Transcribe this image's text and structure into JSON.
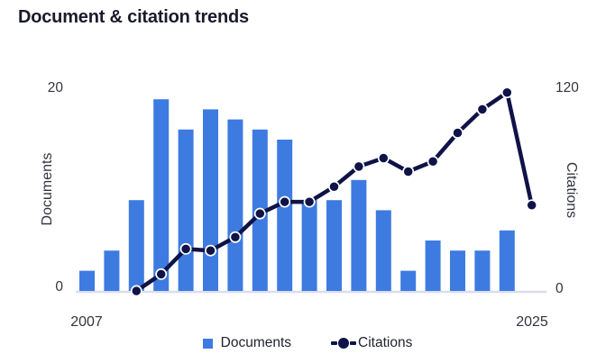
{
  "header": {
    "title": "Document & citation trends"
  },
  "chart": {
    "left_axis": {
      "label": "Documents",
      "max_label": "20",
      "min_label": "0"
    },
    "right_axis": {
      "label": "Citations",
      "max_label": "120",
      "min_label": "0"
    },
    "x_axis": {
      "first_label": "2007",
      "last_label": "2025"
    },
    "legend": {
      "documents_label": "Documents",
      "citations_label": "Citations"
    },
    "colors": {
      "bar": "#3e7be0",
      "line": "#0f1347",
      "marker_ring": "#ffffff",
      "baseline": "#d8ddf0",
      "title_text": "#1a1a2b",
      "axis_text": "#33343e"
    }
  },
  "chart_data": {
    "type": "bar+line combo",
    "title": "Document & citation trends",
    "categories": [
      2007,
      2008,
      2009,
      2010,
      2011,
      2012,
      2013,
      2014,
      2015,
      2016,
      2017,
      2018,
      2019,
      2020,
      2021,
      2022,
      2023,
      2024,
      2025
    ],
    "series": [
      {
        "name": "Documents",
        "type": "bar",
        "axis": "left",
        "values": [
          2,
          4,
          9,
          19,
          16,
          18,
          17,
          16,
          15,
          9,
          9,
          11,
          8,
          2,
          5,
          4,
          4,
          6,
          null
        ]
      },
      {
        "name": "Citations",
        "type": "line",
        "axis": "right",
        "values": [
          null,
          null,
          0,
          10,
          25,
          24,
          32,
          46,
          53,
          53,
          62,
          74,
          79,
          71,
          77,
          94,
          108,
          118,
          51
        ]
      }
    ],
    "left_ylabel": "Documents",
    "right_ylabel": "Citations",
    "left_ylim": [
      0,
      20
    ],
    "right_ylim": [
      0,
      120
    ],
    "x_tick_labels_shown": [
      "2007",
      "2025"
    ],
    "y_tick_labels_shown": {
      "left": [
        "0",
        "20"
      ],
      "right": [
        "0",
        "120"
      ]
    },
    "grid": false,
    "legend_position": "bottom"
  }
}
